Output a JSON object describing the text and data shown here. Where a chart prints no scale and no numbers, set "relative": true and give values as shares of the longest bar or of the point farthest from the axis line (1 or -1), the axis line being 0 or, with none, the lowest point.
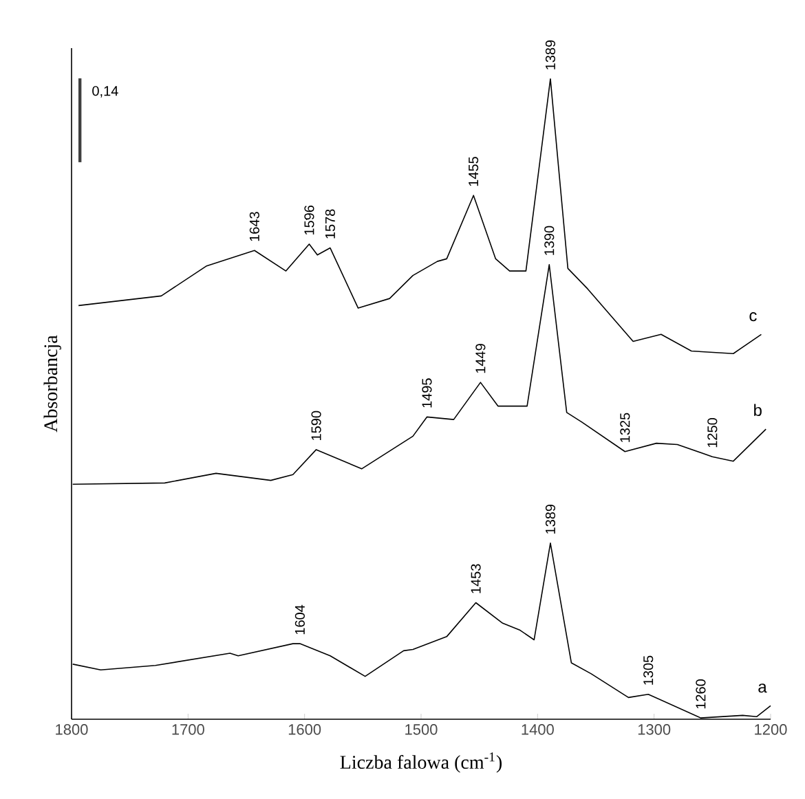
{
  "chart_data": {
    "type": "line",
    "xlabel": "Liczba falowa (cm$^{-1}$)",
    "ylabel": "Absorbancja",
    "xlim": [
      1800,
      1200
    ],
    "xticks": [
      1800,
      1700,
      1600,
      1500,
      1400,
      1300,
      1200
    ],
    "relative": true,
    "line_style": "solid",
    "series": [
      {
        "name": "a",
        "color": "#000000",
        "x": [
          1799,
          1775,
          1728,
          1664,
          1657,
          1610,
          1604,
          1578,
          1548,
          1515,
          1507,
          1478,
          1453,
          1430,
          1415,
          1403,
          1389,
          1371,
          1354,
          1322,
          1305,
          1260,
          1224,
          1212,
          1200
        ],
        "values": [
          0.086,
          0.077,
          0.084,
          0.103,
          0.099,
          0.118,
          0.118,
          0.099,
          0.067,
          0.107,
          0.109,
          0.129,
          0.182,
          0.15,
          0.139,
          0.124,
          0.275,
          0.088,
          0.071,
          0.034,
          0.039,
          0.002,
          0.006,
          0.004,
          0.021
        ]
      },
      {
        "name": "b",
        "color": "#000000",
        "x": [
          1799,
          1720,
          1676,
          1629,
          1610,
          1590,
          1551,
          1507,
          1495,
          1472,
          1449,
          1434,
          1409,
          1390,
          1375,
          1362,
          1325,
          1298,
          1280,
          1250,
          1232,
          1204
        ],
        "values": [
          0.367,
          0.369,
          0.384,
          0.373,
          0.382,
          0.421,
          0.391,
          0.442,
          0.472,
          0.468,
          0.526,
          0.489,
          0.489,
          0.71,
          0.479,
          0.464,
          0.418,
          0.431,
          0.429,
          0.41,
          0.403,
          0.453
        ]
      },
      {
        "name": "c",
        "color": "#000000",
        "x": [
          1794,
          1723,
          1684,
          1643,
          1616,
          1596,
          1589,
          1578,
          1554,
          1527,
          1507,
          1486,
          1478,
          1455,
          1436,
          1424,
          1410,
          1389,
          1374,
          1357,
          1318,
          1294,
          1268,
          1232,
          1208
        ],
        "values": [
          0.646,
          0.661,
          0.708,
          0.732,
          0.7,
          0.742,
          0.725,
          0.736,
          0.642,
          0.657,
          0.693,
          0.715,
          0.719,
          0.818,
          0.719,
          0.7,
          0.7,
          1.0,
          0.704,
          0.672,
          0.59,
          0.601,
          0.575,
          0.571,
          0.601
        ]
      }
    ],
    "annotations": [
      "0,14",
      {
        "text": "1643",
        "x": 1643,
        "y": 0.732
      },
      {
        "text": "1596",
        "x": 1596,
        "y": 0.742
      },
      {
        "text": "1578",
        "x": 1578,
        "y": 0.736
      },
      {
        "text": "1455",
        "x": 1455,
        "y": 0.818
      },
      {
        "text": "1389",
        "x": 1389,
        "y": 1.0
      },
      {
        "text": "1590",
        "x": 1590,
        "y": 0.421
      },
      {
        "text": "1495",
        "x": 1495,
        "y": 0.472
      },
      {
        "text": "1449",
        "x": 1449,
        "y": 0.526
      },
      {
        "text": "1390",
        "x": 1390,
        "y": 0.71
      },
      {
        "text": "1325",
        "x": 1325,
        "y": 0.418
      },
      {
        "text": "1250",
        "x": 1250,
        "y": 0.41
      },
      {
        "text": "1604",
        "x": 1604,
        "y": 0.118
      },
      {
        "text": "1453",
        "x": 1453,
        "y": 0.182
      },
      {
        "text": "1389",
        "x": 1389,
        "y": 0.275
      },
      {
        "text": "1305",
        "x": 1305,
        "y": 0.039
      },
      {
        "text": "1260",
        "x": 1260,
        "y": 0.002
      }
    ]
  }
}
